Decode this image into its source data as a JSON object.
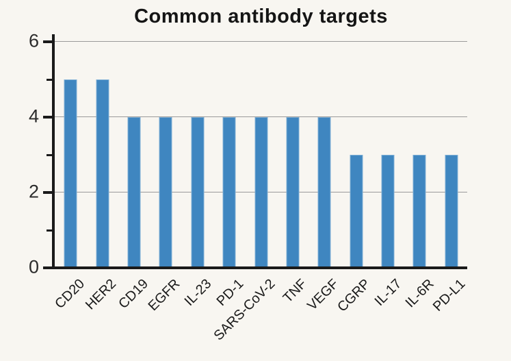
{
  "chart_data": {
    "type": "bar",
    "title": "Common antibody targets",
    "categories": [
      "CD20",
      "HER2",
      "CD19",
      "EGFR",
      "IL-23",
      "PD-1",
      "SARS-CoV-2",
      "TNF",
      "VEGF",
      "CGRP",
      "IL-17",
      "IL-6R",
      "PD-L1"
    ],
    "values": [
      5,
      5,
      4,
      4,
      4,
      4,
      4,
      4,
      4,
      3,
      3,
      3,
      3
    ],
    "xlabel": "",
    "ylabel": "",
    "ylim": [
      0,
      6
    ],
    "yticks_major": [
      0,
      2,
      4,
      6
    ],
    "yticks_minor": [
      1,
      3,
      5
    ],
    "grid": "horizontal gridlines at major ticks, behind bars",
    "legend_position": "none",
    "x_tick_label_rotation_deg": 45,
    "colors": {
      "bar_fill": "#3f86c0",
      "bar_edge": "#7fb0d6",
      "axis": "#1a1a1a",
      "gridline": "#9a9a9a",
      "background": "#f8f6f1",
      "title_text": "#151515",
      "tick_text": "#2b2b2b"
    }
  }
}
